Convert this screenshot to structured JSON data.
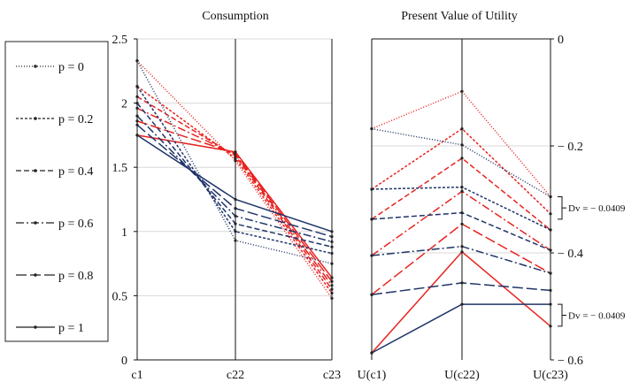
{
  "legend": [
    {
      "label": "p = 0",
      "dash": "1,2"
    },
    {
      "label": "p = 0.2",
      "dash": "3,2"
    },
    {
      "label": "p = 0.4",
      "dash": "6,3"
    },
    {
      "label": "p = 0.6",
      "dash": "9,3,2,3"
    },
    {
      "label": "p = 0.8",
      "dash": "12,4"
    },
    {
      "label": "p = 1",
      "dash": ""
    }
  ],
  "colors": {
    "red": "#e8231f",
    "navy": "#1f3468"
  },
  "chart_data": [
    {
      "type": "line",
      "title": "Consumption",
      "categories": [
        "c1",
        "c22",
        "c23"
      ],
      "ylim": [
        0,
        2.5
      ],
      "yticks": [
        "0",
        "0.5",
        "1",
        "1.5",
        "2",
        "2.5"
      ],
      "grid": true,
      "series": [
        {
          "name": "p = 0",
          "color": "red",
          "values": [
            2.33,
            1.55,
            0.48
          ]
        },
        {
          "name": "p = 0.2",
          "color": "red",
          "values": [
            2.13,
            1.57,
            0.52
          ]
        },
        {
          "name": "p = 0.4",
          "color": "red",
          "values": [
            2.05,
            1.59,
            0.55
          ]
        },
        {
          "name": "p = 0.6",
          "color": "red",
          "values": [
            1.96,
            1.6,
            0.58
          ]
        },
        {
          "name": "p = 0.8",
          "color": "red",
          "values": [
            1.86,
            1.61,
            0.61
          ]
        },
        {
          "name": "p = 1",
          "color": "red",
          "values": [
            1.75,
            1.62,
            0.64
          ]
        },
        {
          "name": "p = 0",
          "color": "navy",
          "values": [
            2.33,
            0.93,
            0.75
          ]
        },
        {
          "name": "p = 0.2",
          "color": "navy",
          "values": [
            2.13,
            1.0,
            0.83
          ]
        },
        {
          "name": "p = 0.4",
          "color": "navy",
          "values": [
            2.0,
            1.06,
            0.88
          ]
        },
        {
          "name": "p = 0.6",
          "color": "navy",
          "values": [
            1.9,
            1.12,
            0.92
          ]
        },
        {
          "name": "p = 0.8",
          "color": "navy",
          "values": [
            1.83,
            1.18,
            0.96
          ]
        },
        {
          "name": "p = 1",
          "color": "navy",
          "values": [
            1.75,
            1.25,
            1.0
          ]
        }
      ]
    },
    {
      "type": "line",
      "title": "Present Value of Utility",
      "categories": [
        "U(c1)",
        "U(c22)",
        "U(c23)"
      ],
      "ylim": [
        -0.6,
        0
      ],
      "yticks": [
        "0",
        "− 0.2",
        "− 0.4",
        "− 0.6"
      ],
      "grid": true,
      "series": [
        {
          "name": "p = 0",
          "color": "red",
          "values": [
            -0.168,
            -0.098,
            -0.295
          ]
        },
        {
          "name": "p = 0.2",
          "color": "red",
          "values": [
            -0.281,
            -0.168,
            -0.327
          ]
        },
        {
          "name": "p = 0.4",
          "color": "red",
          "values": [
            -0.337,
            -0.223,
            -0.357
          ]
        },
        {
          "name": "p = 0.6",
          "color": "red",
          "values": [
            -0.405,
            -0.285,
            -0.395
          ]
        },
        {
          "name": "p = 0.8",
          "color": "red",
          "values": [
            -0.478,
            -0.346,
            -0.438
          ]
        },
        {
          "name": "p = 1",
          "color": "red",
          "values": [
            -0.587,
            -0.398,
            -0.537
          ]
        },
        {
          "name": "p = 0",
          "color": "navy",
          "values": [
            -0.168,
            -0.198,
            -0.295
          ]
        },
        {
          "name": "p = 0.2",
          "color": "navy",
          "values": [
            -0.281,
            -0.277,
            -0.357
          ]
        },
        {
          "name": "p = 0.4",
          "color": "navy",
          "values": [
            -0.337,
            -0.325,
            -0.395
          ]
        },
        {
          "name": "p = 0.6",
          "color": "navy",
          "values": [
            -0.405,
            -0.388,
            -0.438
          ]
        },
        {
          "name": "p = 0.8",
          "color": "navy",
          "values": [
            -0.478,
            -0.456,
            -0.47
          ]
        },
        {
          "name": "p = 1",
          "color": "navy",
          "values": [
            -0.587,
            -0.496,
            -0.496
          ]
        }
      ],
      "annotations": [
        {
          "label": "Dv = − 0.0409",
          "range": [
            -0.295,
            -0.337
          ]
        },
        {
          "label": "Dv = − 0.0409",
          "range": [
            -0.496,
            -0.537
          ]
        }
      ]
    }
  ]
}
